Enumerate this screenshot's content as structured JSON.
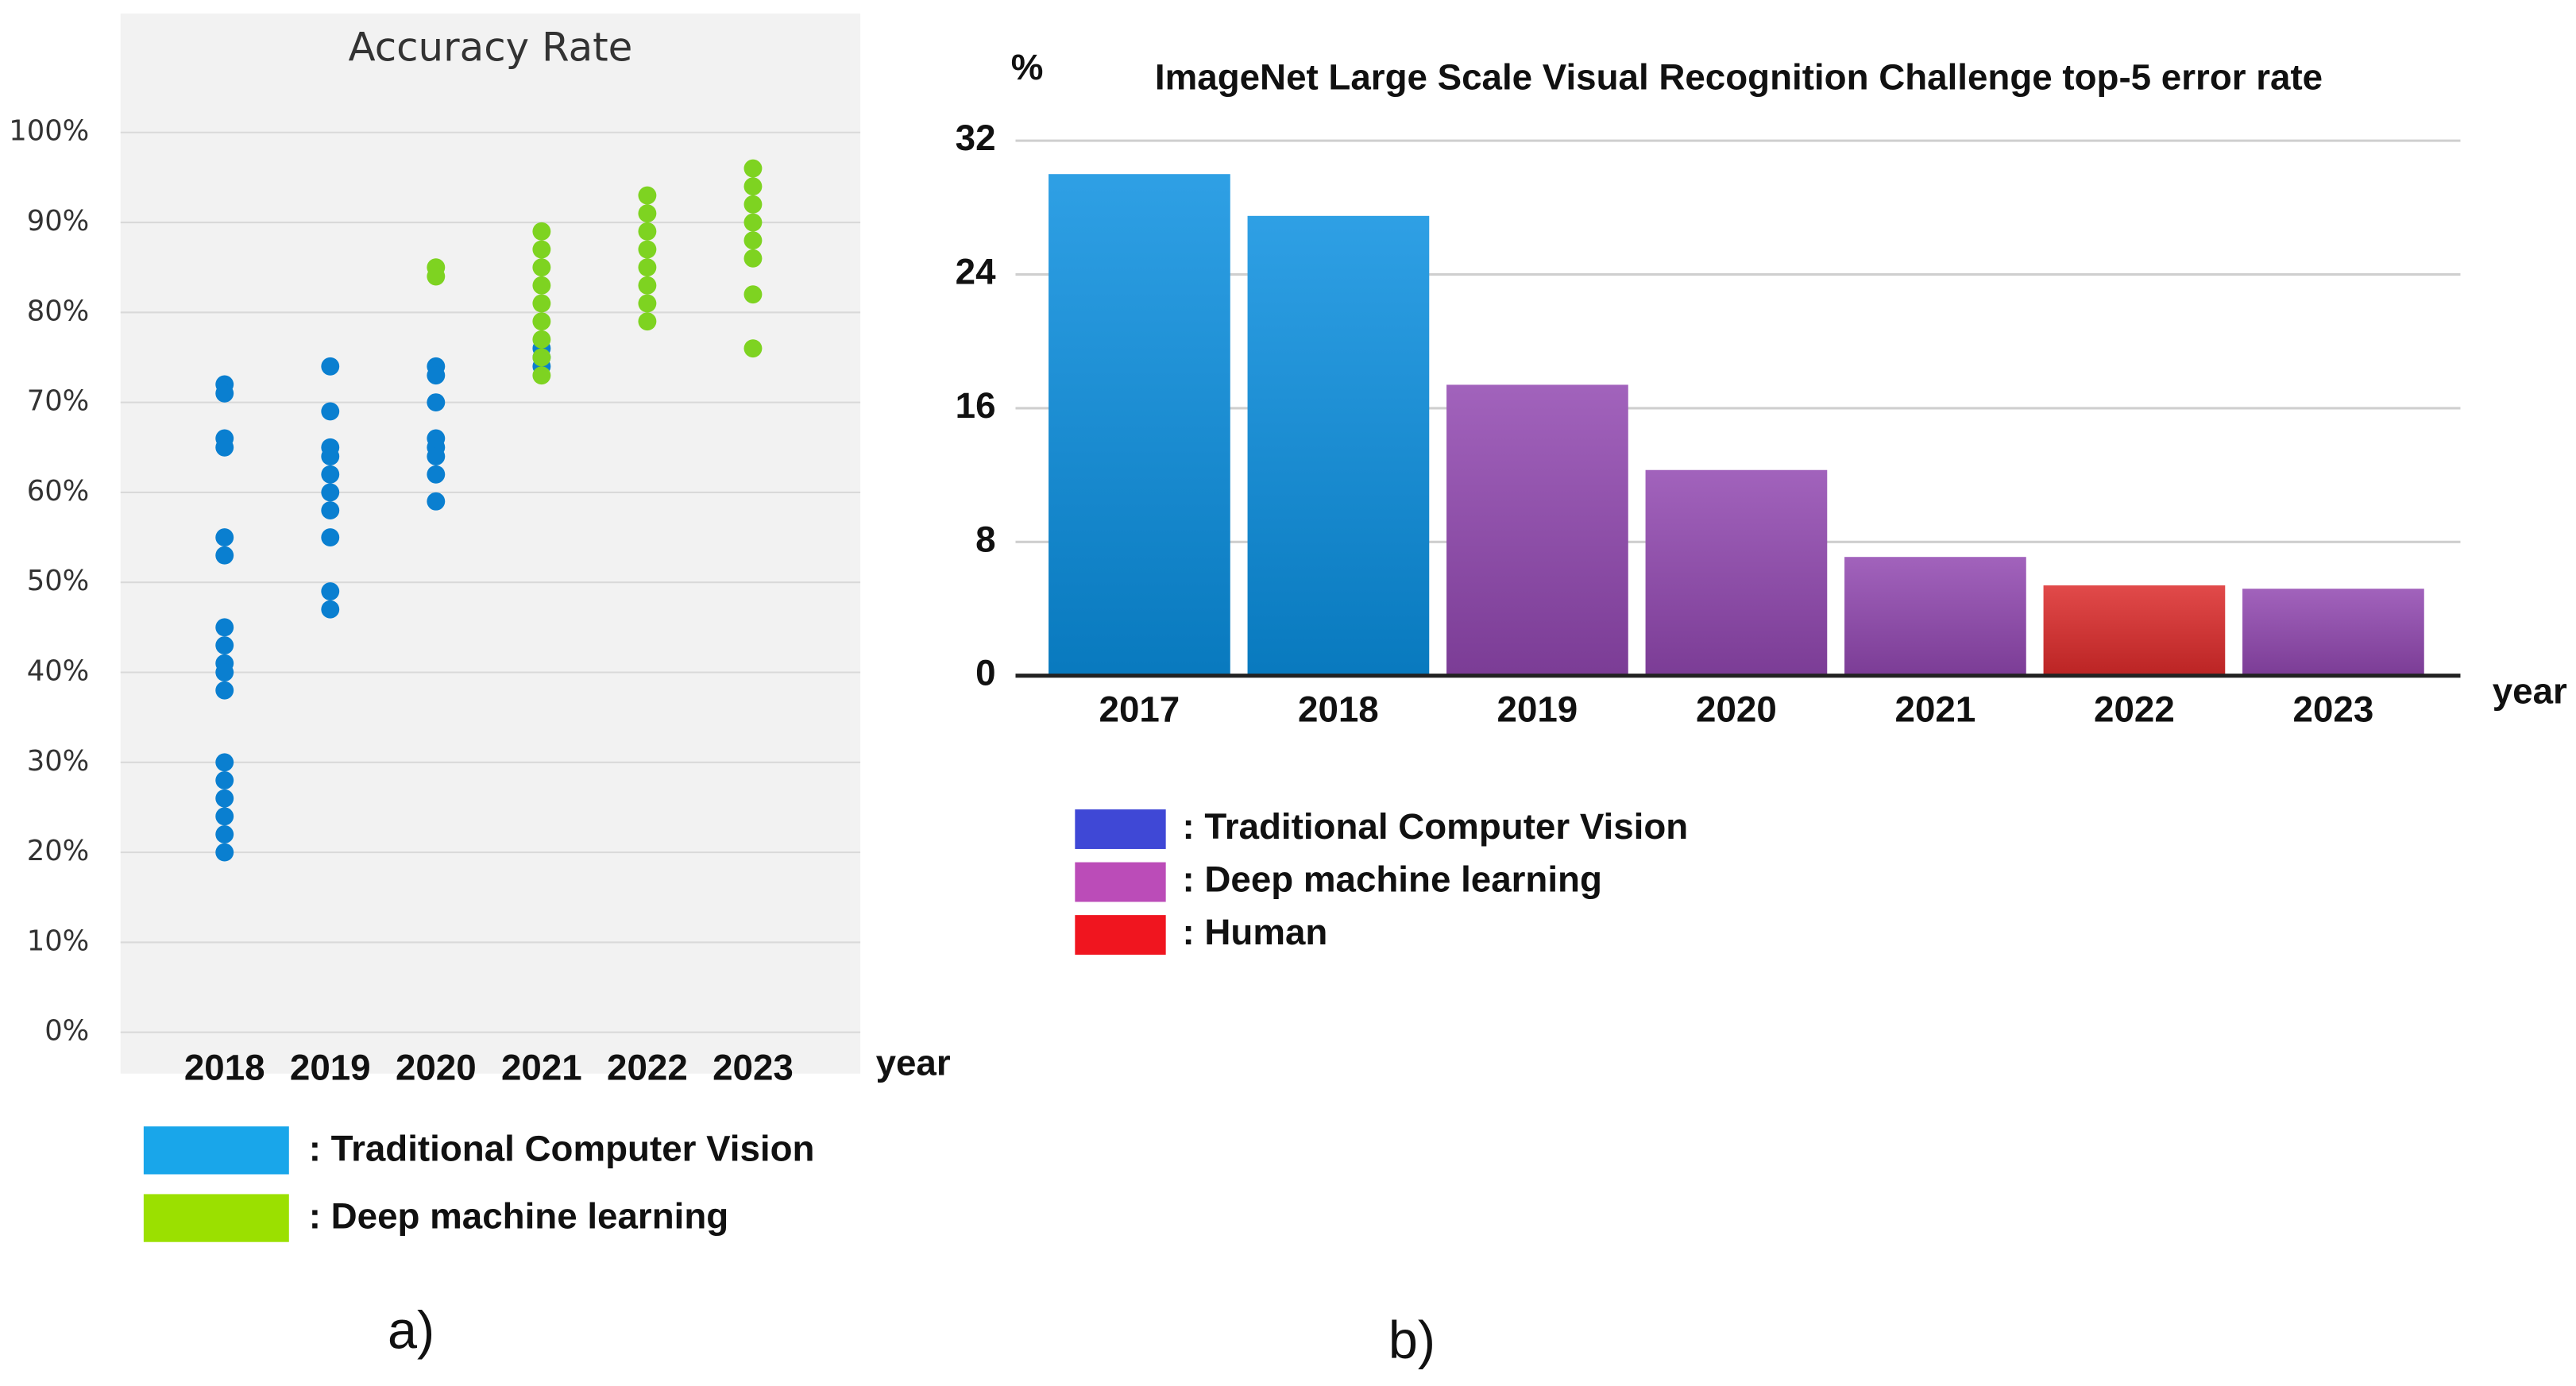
{
  "chart_data": [
    {
      "type": "scatter",
      "title": "Accuracy Rate",
      "x_label": "year",
      "caption": "a)",
      "categories": [
        "2018",
        "2019",
        "2020",
        "2021",
        "2022",
        "2023"
      ],
      "ylim": [
        0,
        100
      ],
      "yticks": [
        {
          "value": 0,
          "label": "0%"
        },
        {
          "value": 10,
          "label": "10%"
        },
        {
          "value": 20,
          "label": "20%"
        },
        {
          "value": 30,
          "label": "30%"
        },
        {
          "value": 40,
          "label": "40%"
        },
        {
          "value": 50,
          "label": "50%"
        },
        {
          "value": 60,
          "label": "60%"
        },
        {
          "value": 70,
          "label": "70%"
        },
        {
          "value": 80,
          "label": "80%"
        },
        {
          "value": 90,
          "label": "90%"
        },
        {
          "value": 100,
          "label": "100%"
        }
      ],
      "grid": true,
      "series": [
        {
          "name": ": Traditional Computer Vision",
          "color": "#0a7fd0",
          "legend_color": "#19a6ea",
          "x": [
            "2018",
            "2018",
            "2018",
            "2018",
            "2018",
            "2018",
            "2018",
            "2018",
            "2018",
            "2018",
            "2018",
            "2018",
            "2018",
            "2018",
            "2018",
            "2018",
            "2018",
            "2019",
            "2019",
            "2019",
            "2019",
            "2019",
            "2019",
            "2019",
            "2019",
            "2019",
            "2019",
            "2020",
            "2020",
            "2020",
            "2020",
            "2020",
            "2020",
            "2020",
            "2020",
            "2021",
            "2021",
            "2021"
          ],
          "values": [
            72,
            71,
            66,
            65,
            55,
            53,
            45,
            43,
            41,
            40,
            38,
            30,
            28,
            26,
            24,
            22,
            20,
            74,
            69,
            65,
            64,
            62,
            60,
            58,
            55,
            49,
            47,
            74,
            73,
            70,
            66,
            65,
            64,
            62,
            59,
            76,
            75,
            74
          ]
        },
        {
          "name": ": Deep machine learning",
          "color": "#7ed321",
          "legend_color": "#9be000",
          "x": [
            "2020",
            "2020",
            "2021",
            "2021",
            "2021",
            "2021",
            "2021",
            "2021",
            "2021",
            "2021",
            "2021",
            "2022",
            "2022",
            "2022",
            "2022",
            "2022",
            "2022",
            "2022",
            "2022",
            "2023",
            "2023",
            "2023",
            "2023",
            "2023",
            "2023",
            "2023",
            "2023"
          ],
          "values": [
            85,
            84,
            89,
            87,
            85,
            83,
            81,
            79,
            77,
            75,
            73,
            93,
            91,
            89,
            87,
            85,
            83,
            81,
            79,
            96,
            94,
            92,
            90,
            88,
            86,
            82,
            76
          ]
        }
      ]
    },
    {
      "type": "bar",
      "title": "ImageNet Large Scale Visual Recognition Challenge top-5 error rate",
      "y_label": "%",
      "x_label": "year",
      "caption": "b)",
      "categories": [
        "2017",
        "2018",
        "2019",
        "2020",
        "2021",
        "2022",
        "2023"
      ],
      "values": [
        30,
        27.5,
        17.4,
        12.3,
        7.1,
        5.4,
        5.2
      ],
      "colors": [
        "#0a8fe0",
        "#0a8fe0",
        "#9147b0",
        "#9147b0",
        "#9147b0",
        "#dc2a2a",
        "#9147b0"
      ],
      "ylim": [
        0,
        32
      ],
      "yticks": [
        0,
        8,
        16,
        24,
        32
      ],
      "grid": true,
      "legend": [
        {
          "label": ": Traditional Computer Vision",
          "color": "#3f48d6"
        },
        {
          "label": ": Deep machine learning",
          "color": "#bb4cb8"
        },
        {
          "label": ": Human",
          "color": "#f0151f"
        }
      ]
    }
  ]
}
